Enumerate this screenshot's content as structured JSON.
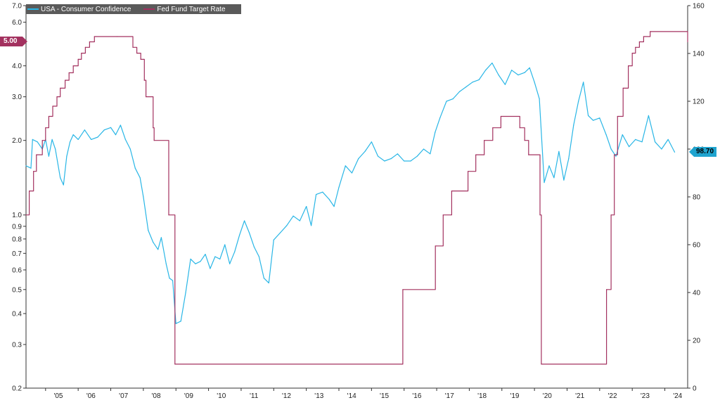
{
  "legend": {
    "series1_label": "USA - Consumer Confidence",
    "series2_label": "Fed Fund Target Rate"
  },
  "badges": {
    "fed_rate_last": "5.00",
    "consumer_confidence_last": "98.70"
  },
  "colors": {
    "consumer_confidence": "#29b6e6",
    "fed_rate": "#a3315f",
    "axis": "#333333"
  },
  "chart_data": {
    "type": "line",
    "x_tick_labels": [
      "'05",
      "'06",
      "'07",
      "'08",
      "'09",
      "'10",
      "'11",
      "'12",
      "'13",
      "'14",
      "'15",
      "'16",
      "'17",
      "'18",
      "'19",
      "'20",
      "'21",
      "'22",
      "'23",
      "'24"
    ],
    "x_range": [
      2004.4,
      2024.7
    ],
    "left_axis": {
      "scale": "log",
      "ylim": [
        0.2,
        7.0
      ],
      "tick_labels": [
        "7.0",
        "6.0",
        "4.0",
        "3.0",
        "2.0",
        "1.0",
        "0.9",
        "0.8",
        "0.7",
        "0.6",
        "0.5",
        "0.4",
        "0.3",
        "0.2"
      ],
      "tick_values": [
        7.0,
        6.0,
        4.0,
        3.0,
        2.0,
        1.0,
        0.9,
        0.8,
        0.7,
        0.6,
        0.5,
        0.4,
        0.3,
        0.2
      ]
    },
    "right_axis": {
      "scale": "linear",
      "ylim": [
        0,
        160
      ],
      "tick_labels": [
        "160",
        "140",
        "120",
        "100",
        "80",
        "60",
        "40",
        "20",
        "0"
      ],
      "tick_values": [
        160,
        140,
        120,
        100,
        80,
        60,
        40,
        20,
        0
      ]
    },
    "series": [
      {
        "name": "USA - Consumer Confidence",
        "axis": "right",
        "x": [
          2004.4,
          2004.55,
          2004.6,
          2004.75,
          2004.9,
          2005.0,
          2005.1,
          2005.2,
          2005.3,
          2005.45,
          2005.55,
          2005.65,
          2005.75,
          2005.85,
          2006.0,
          2006.2,
          2006.4,
          2006.6,
          2006.8,
          2007.0,
          2007.15,
          2007.3,
          2007.45,
          2007.6,
          2007.75,
          2007.9,
          2008.0,
          2008.15,
          2008.3,
          2008.45,
          2008.55,
          2008.7,
          2008.8,
          2008.9,
          2009.0,
          2009.15,
          2009.3,
          2009.45,
          2009.6,
          2009.75,
          2009.9,
          2010.05,
          2010.2,
          2010.35,
          2010.5,
          2010.65,
          2010.8,
          2010.95,
          2011.1,
          2011.25,
          2011.4,
          2011.55,
          2011.7,
          2011.85,
          2012.0,
          2012.2,
          2012.4,
          2012.6,
          2012.8,
          2013.0,
          2013.15,
          2013.3,
          2013.5,
          2013.7,
          2013.85,
          2014.0,
          2014.2,
          2014.4,
          2014.6,
          2014.8,
          2015.0,
          2015.2,
          2015.4,
          2015.6,
          2015.8,
          2016.0,
          2016.2,
          2016.4,
          2016.6,
          2016.8,
          2016.95,
          2017.1,
          2017.3,
          2017.5,
          2017.7,
          2017.9,
          2018.1,
          2018.3,
          2018.5,
          2018.7,
          2018.9,
          2019.1,
          2019.3,
          2019.5,
          2019.7,
          2019.85,
          2020.0,
          2020.15,
          2020.3,
          2020.45,
          2020.6,
          2020.75,
          2020.9,
          2021.05,
          2021.2,
          2021.35,
          2021.5,
          2021.65,
          2021.8,
          2022.0,
          2022.2,
          2022.35,
          2022.5,
          2022.7,
          2022.9,
          2023.1,
          2023.3,
          2023.5,
          2023.7,
          2023.9,
          2024.1,
          2024.3
        ],
        "values": [
          93,
          92,
          104,
          103,
          100,
          104,
          97,
          104,
          100,
          88,
          85,
          97,
          103,
          106,
          104,
          108,
          104,
          105,
          108,
          109,
          106,
          110,
          104,
          100,
          92,
          88,
          80,
          66,
          61,
          58,
          63,
          52,
          46,
          45,
          27,
          28,
          40,
          54,
          52,
          53,
          56,
          50,
          55,
          54,
          60,
          52,
          57,
          64,
          70,
          65,
          59,
          55,
          46,
          44,
          62,
          65,
          68,
          72,
          70,
          76,
          68,
          81,
          82,
          79,
          76,
          84,
          93,
          90,
          96,
          99,
          103,
          97,
          95,
          96,
          98,
          95,
          95,
          97,
          100,
          98,
          107,
          113,
          120,
          121,
          124,
          126,
          128,
          129,
          133,
          136,
          131,
          127,
          133,
          131,
          132,
          134,
          128,
          121,
          86,
          93,
          88,
          99,
          87,
          96,
          110,
          120,
          128,
          114,
          112,
          113,
          106,
          100,
          97,
          106,
          101,
          104,
          103,
          114,
          103,
          100,
          104,
          98.7
        ]
      },
      {
        "name": "Fed Fund Target Rate",
        "axis": "left",
        "x": [
          2004.4,
          2004.5,
          2004.63,
          2004.72,
          2004.9,
          2005.0,
          2005.1,
          2005.22,
          2005.35,
          2005.45,
          2005.6,
          2005.72,
          2005.85,
          2006.0,
          2006.1,
          2006.22,
          2006.35,
          2006.5,
          2007.2,
          2007.68,
          2007.8,
          2007.92,
          2008.03,
          2008.08,
          2008.3,
          2008.33,
          2008.78,
          2008.97,
          2015.96,
          2016.96,
          2017.2,
          2017.46,
          2017.96,
          2018.2,
          2018.46,
          2018.72,
          2018.97,
          2019.55,
          2019.7,
          2019.82,
          2020.17,
          2020.21,
          2022.21,
          2022.35,
          2022.45,
          2022.55,
          2022.72,
          2022.88,
          2023.0,
          2023.1,
          2023.22,
          2023.35,
          2023.55,
          2024.7
        ],
        "values": [
          1.0,
          1.25,
          1.5,
          1.75,
          2.0,
          2.25,
          2.5,
          2.75,
          3.0,
          3.25,
          3.5,
          3.75,
          4.0,
          4.25,
          4.5,
          4.75,
          5.0,
          5.25,
          5.25,
          4.75,
          4.5,
          4.25,
          3.5,
          3.0,
          2.25,
          2.0,
          1.0,
          0.25,
          0.5,
          0.75,
          1.0,
          1.25,
          1.5,
          1.75,
          2.0,
          2.25,
          2.5,
          2.25,
          2.0,
          1.75,
          1.0,
          0.25,
          0.5,
          1.0,
          1.75,
          2.5,
          3.25,
          4.0,
          4.5,
          4.75,
          5.0,
          5.25,
          5.5,
          5.0
        ]
      }
    ]
  }
}
